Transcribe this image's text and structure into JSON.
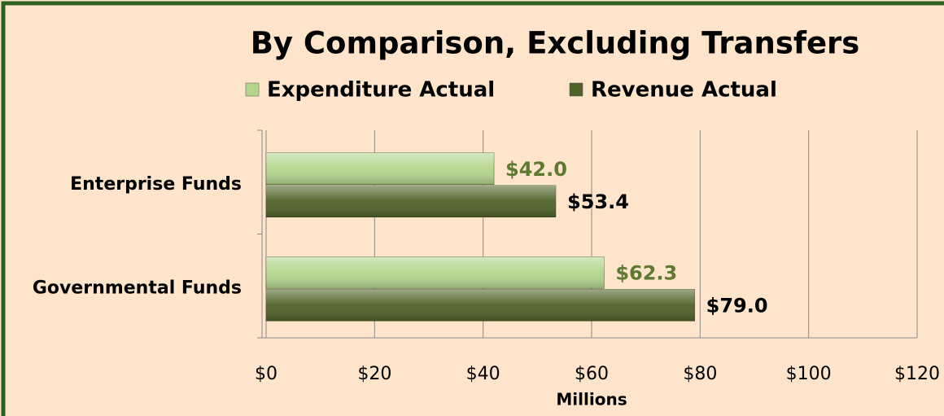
{
  "chart_data": {
    "type": "barh",
    "title": "By Comparison, Excluding Transfers",
    "categories": [
      "Enterprise Funds",
      "Governmental Funds"
    ],
    "series": [
      {
        "name": "Expenditure Actual",
        "color": "#b3d58c",
        "label_color": "#5f7a30",
        "values": [
          42.0,
          62.3
        ],
        "value_labels": [
          "$42.0",
          "$62.3"
        ]
      },
      {
        "name": "Revenue Actual",
        "color": "#4f6228",
        "label_color": "#000000",
        "values": [
          53.4,
          79.0
        ],
        "value_labels": [
          "$53.4",
          "$79.0"
        ]
      }
    ],
    "xlabel": "Millions",
    "xlim": [
      0,
      120
    ],
    "xticks": [
      {
        "value": 0,
        "label": "$0"
      },
      {
        "value": 20,
        "label": "$20"
      },
      {
        "value": 40,
        "label": "$40"
      },
      {
        "value": 60,
        "label": "$60"
      },
      {
        "value": 80,
        "label": "$80"
      },
      {
        "value": 100,
        "label": "$100"
      },
      {
        "value": 120,
        "label": "$120"
      }
    ],
    "grid": true,
    "legend": "top"
  }
}
